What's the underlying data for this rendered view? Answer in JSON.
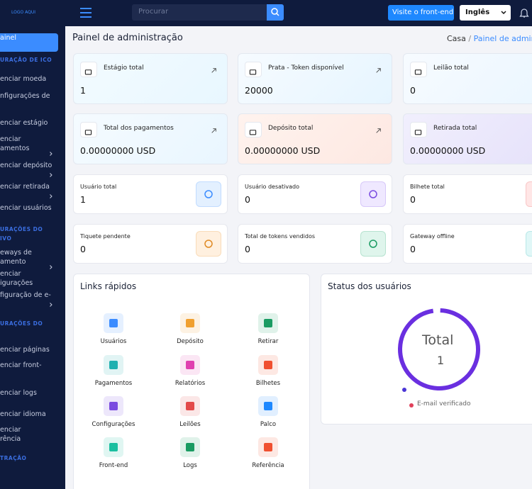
{
  "sidebar": {
    "logo": "LOGO AQUI",
    "items": [
      {
        "kind": "link",
        "lines": [
          "ainel"
        ],
        "active": true
      },
      {
        "kind": "header",
        "lines": [
          "URAÇÃO DE ICO"
        ]
      },
      {
        "kind": "link",
        "lines": [
          "enciar moeda"
        ]
      },
      {
        "kind": "link",
        "lines": [
          "nfigurações de"
        ]
      },
      {
        "kind": "link",
        "lines": [
          "enciar estágio"
        ]
      },
      {
        "kind": "link",
        "lines": [
          "enciar",
          "amentos"
        ],
        "chevron": true
      },
      {
        "kind": "link",
        "lines": [
          "enciar depósito"
        ],
        "chevron": true
      },
      {
        "kind": "link",
        "lines": [
          "enciar retirada"
        ],
        "chevron": true
      },
      {
        "kind": "link",
        "lines": [
          "enciar usuários"
        ]
      },
      {
        "kind": "header",
        "lines": [
          "URAÇÕES DO",
          "IVO"
        ]
      },
      {
        "kind": "link",
        "lines": [
          "eways de",
          "amento"
        ],
        "chevron": true
      },
      {
        "kind": "link",
        "lines": [
          "enciar",
          "igurações"
        ]
      },
      {
        "kind": "link",
        "lines": [
          "figuração de e-"
        ],
        "chevron": true
      },
      {
        "kind": "header",
        "lines": [
          "URAÇÕES DO"
        ]
      },
      {
        "kind": "link",
        "lines": [
          "enciar páginas"
        ]
      },
      {
        "kind": "link",
        "lines": [
          "enciar front-"
        ]
      },
      {
        "kind": "link",
        "lines": [
          "enciar logs"
        ]
      },
      {
        "kind": "link",
        "lines": [
          "enciar idioma"
        ]
      },
      {
        "kind": "link",
        "lines": [
          "enciar",
          "rência"
        ]
      },
      {
        "kind": "header",
        "lines": [
          "TRAÇÃO"
        ]
      }
    ]
  },
  "topbar": {
    "search_placeholder": "Procurar",
    "visit_button": "Visite o front-end",
    "language": "Inglês"
  },
  "header": {
    "title": "Painel de administração",
    "breadcrumb": [
      "Casa",
      "/",
      "Painel de admini"
    ]
  },
  "cards": [
    {
      "label": "Estágio total",
      "value": "1"
    },
    {
      "label": "Prata - Token disponível",
      "value": "20000"
    },
    {
      "label": "Leilão total",
      "value": "0"
    },
    {
      "label": "Total dos pagamentos",
      "value": "0.00000000 USD"
    },
    {
      "label": "Depósito total",
      "value": "0.00000000 USD"
    },
    {
      "label": "Retirada total",
      "value": "0.00000000 USD"
    }
  ],
  "stats": [
    {
      "label": "Usuário total",
      "value": "1"
    },
    {
      "label": "Usuário desativado",
      "value": "0"
    },
    {
      "label": "Bilhete total",
      "value": "0"
    },
    {
      "label": "Tiquete pendente",
      "value": "0"
    },
    {
      "label": "Total de tokens vendidos",
      "value": "0"
    },
    {
      "label": "Gateway offline",
      "value": "0"
    }
  ],
  "quick_links": {
    "title": "Links rápidos",
    "items": [
      "Usuários",
      "Depósito",
      "Retirar",
      "Pagamentos",
      "Relatórios",
      "Bilhetes",
      "Configurações",
      "Leilões",
      "Palco",
      "Front-end",
      "Logs",
      "Referência"
    ]
  },
  "user_status": {
    "title": "Status dos usuários",
    "center_label": "Total",
    "center_value": "1",
    "legend": [
      "E-mail verificado"
    ]
  }
}
